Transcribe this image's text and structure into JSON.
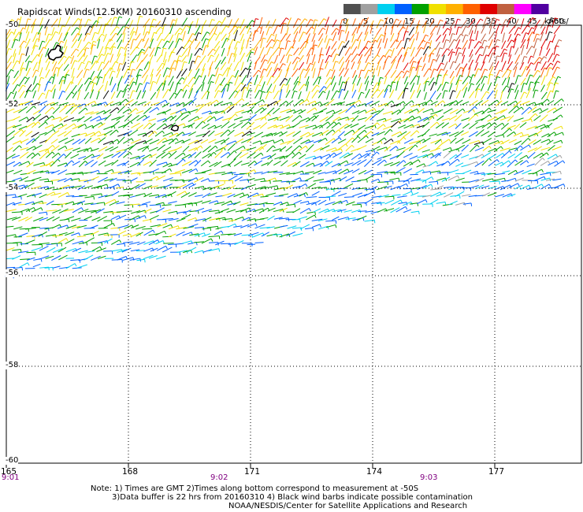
{
  "title": "Rapidscat Winds(12.5KM) 20160310 ascending",
  "legend": {
    "ticks": [
      "0",
      "5",
      "10",
      "15",
      "20",
      "25",
      "30",
      "35",
      "40",
      "45",
      ">50"
    ],
    "unit": "knots",
    "colors": [
      "#505050",
      "#a0a0a0",
      "#00d0f0",
      "#0060ff",
      "#00a000",
      "#f0e000",
      "#ffb000",
      "#ff6000",
      "#e00000",
      "#c06040",
      "#ff00ff",
      "#5000a0"
    ]
  },
  "lat_labels": [
    "-50",
    "-52",
    "-54",
    "-56",
    "-58",
    "-60"
  ],
  "lon_labels": [
    "165",
    "168",
    "171",
    "174",
    "177"
  ],
  "time_labels": [
    "9:01",
    "9:02",
    "9:03"
  ],
  "notes": [
    "Note: 1) Times are GMT 2)Times along bottom correspond to measurement at -50S",
    "3)Data buffer is 22 hrs from 20160310 4) Black wind barbs indicate possible contamination",
    "NOAA/NESDIS/Center for Satellite Applications and Research"
  ],
  "map": {
    "lat_range": [
      -60,
      -50
    ],
    "lon_range": [
      165,
      178.5
    ],
    "swath_south_edge": [
      [
        165,
        -56.0
      ],
      [
        166,
        -55.9
      ],
      [
        167,
        -55.8
      ],
      [
        168,
        -55.7
      ],
      [
        169,
        -55.6
      ],
      [
        170,
        -55.45
      ],
      [
        171,
        -55.3
      ],
      [
        172,
        -55.1
      ],
      [
        173,
        -54.9
      ],
      [
        174,
        -54.7
      ],
      [
        175,
        -54.55
      ],
      [
        176,
        -54.4
      ],
      [
        177,
        -54.25
      ],
      [
        178,
        -54.1
      ],
      [
        178.5,
        -54.0
      ]
    ],
    "wind_zones": [
      {
        "lon_min": 165,
        "lon_max": 171,
        "lat_min": -51.4,
        "lat_max": -50,
        "speed": 28
      },
      {
        "lon_min": 171,
        "lon_max": 178.5,
        "lat_min": -51.6,
        "lat_max": -50,
        "speed": 36
      },
      {
        "lon_min": 175.5,
        "lon_max": 178.5,
        "lat_min": -51.2,
        "lat_max": -50,
        "speed": 44
      },
      {
        "lon_min": 165,
        "lon_max": 178.5,
        "lat_min": -53.2,
        "lat_max": -51.4,
        "speed": 24
      },
      {
        "lon_min": 165,
        "lon_max": 172,
        "lat_min": -56,
        "lat_max": -53.2,
        "speed": 22
      },
      {
        "lon_min": 172,
        "lon_max": 178.5,
        "lat_min": -55,
        "lat_max": -53.2,
        "speed": 19
      }
    ],
    "islands": [
      {
        "name": "",
        "lon": 166.2,
        "lat": -50.7
      },
      {
        "name": "",
        "lon": 169.15,
        "lat": -52.55
      }
    ]
  }
}
